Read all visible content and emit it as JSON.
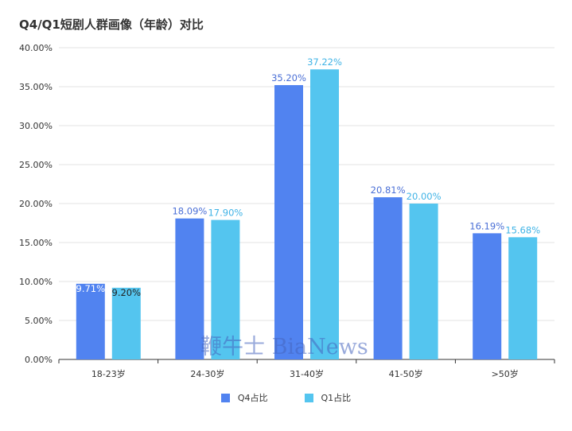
{
  "chart_data": {
    "type": "bar",
    "title": "Q4/Q1短剧人群画像（年龄）对比",
    "categories": [
      "18-23岁",
      "24-30岁",
      "31-40岁",
      "41-50岁",
      ">50岁"
    ],
    "series": [
      {
        "name": "Q4占比",
        "values": [
          9.71,
          18.09,
          35.2,
          20.81,
          16.19
        ],
        "labels": [
          "9.71%",
          "18.09%",
          "35.20%",
          "20.81%",
          "16.19%"
        ],
        "color": "#5183F0",
        "label_color": "#4A6FD6"
      },
      {
        "name": "Q1占比",
        "values": [
          9.2,
          17.9,
          37.22,
          20.0,
          15.68
        ],
        "labels": [
          "9.20%",
          "17.90%",
          "37.22%",
          "20.00%",
          "15.68%"
        ],
        "color": "#54C5EF",
        "label_color": "#3FB3E6"
      }
    ],
    "y_ticks": [
      "0.00%",
      "5.00%",
      "10.00%",
      "15.00%",
      "20.00%",
      "25.00%",
      "30.00%",
      "35.00%",
      "40.00%"
    ],
    "ylim": [
      0,
      40
    ],
    "ylabel_unit": "%",
    "grid": true,
    "legend_position": "bottom"
  },
  "watermark": {
    "text": "鞭牛士 BiaNews"
  }
}
